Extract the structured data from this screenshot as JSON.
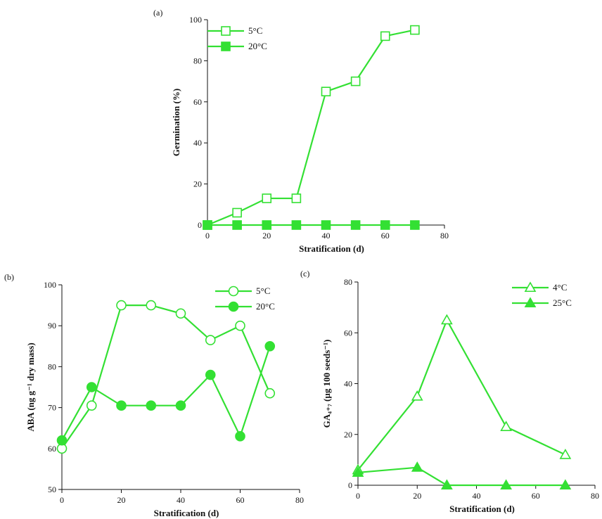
{
  "chart_data": [
    {
      "panel_label": "(a)",
      "type": "line",
      "xlabel": "Stratification (d)",
      "ylabel": "Germination (%)",
      "xlim": [
        0,
        80
      ],
      "ylim": [
        0,
        100
      ],
      "xticks": [
        0,
        20,
        40,
        60,
        80
      ],
      "yticks": [
        0,
        20,
        40,
        60,
        80,
        100
      ],
      "legend_position": "top-left",
      "series": [
        {
          "name": "5°C",
          "marker": "square",
          "filled": false,
          "x": [
            0,
            10,
            20,
            30,
            40,
            50,
            60,
            70
          ],
          "y": [
            0,
            6,
            13,
            13,
            65,
            70,
            92,
            95
          ]
        },
        {
          "name": "20°C",
          "marker": "square",
          "filled": true,
          "x": [
            0,
            10,
            20,
            30,
            40,
            50,
            60,
            70
          ],
          "y": [
            0,
            0,
            0,
            0,
            0,
            0,
            0,
            0
          ]
        }
      ]
    },
    {
      "panel_label": "(b)",
      "type": "line",
      "xlabel": "Stratification (d)",
      "ylabel": "ABA (ng g⁻¹ dry mass)",
      "xlim": [
        0,
        80
      ],
      "ylim": [
        50,
        100
      ],
      "xticks": [
        0,
        20,
        40,
        60,
        80
      ],
      "yticks": [
        50,
        60,
        70,
        80,
        90,
        100
      ],
      "legend_position": "top-right",
      "series": [
        {
          "name": "5°C",
          "marker": "circle",
          "filled": false,
          "x": [
            0,
            10,
            20,
            30,
            40,
            50,
            60,
            70
          ],
          "y": [
            60,
            70.5,
            95,
            95,
            93,
            86.5,
            90,
            73.5
          ]
        },
        {
          "name": "20°C",
          "marker": "circle",
          "filled": true,
          "x": [
            0,
            10,
            20,
            30,
            40,
            50,
            60,
            70
          ],
          "y": [
            62,
            75,
            70.5,
            70.5,
            70.5,
            78,
            63,
            85
          ]
        }
      ]
    },
    {
      "panel_label": "(c)",
      "type": "line",
      "xlabel": "Stratification (d)",
      "ylabel": "GA₄₊₇ (µg 100 seeds⁻¹)",
      "xlim": [
        0,
        80
      ],
      "ylim": [
        0,
        80
      ],
      "xticks": [
        0,
        20,
        40,
        60,
        80
      ],
      "yticks": [
        0,
        20,
        40,
        60,
        80
      ],
      "legend_position": "top-right",
      "series": [
        {
          "name": "4°C",
          "marker": "triangle",
          "filled": false,
          "x": [
            0,
            20,
            30,
            50,
            70
          ],
          "y": [
            6,
            35,
            65,
            23,
            12
          ]
        },
        {
          "name": "25°C",
          "marker": "triangle",
          "filled": true,
          "x": [
            0,
            20,
            30,
            50,
            70
          ],
          "y": [
            5,
            7,
            0,
            0,
            0
          ]
        }
      ]
    }
  ],
  "colors": {
    "series": "#33e033",
    "axis": "#111111"
  }
}
